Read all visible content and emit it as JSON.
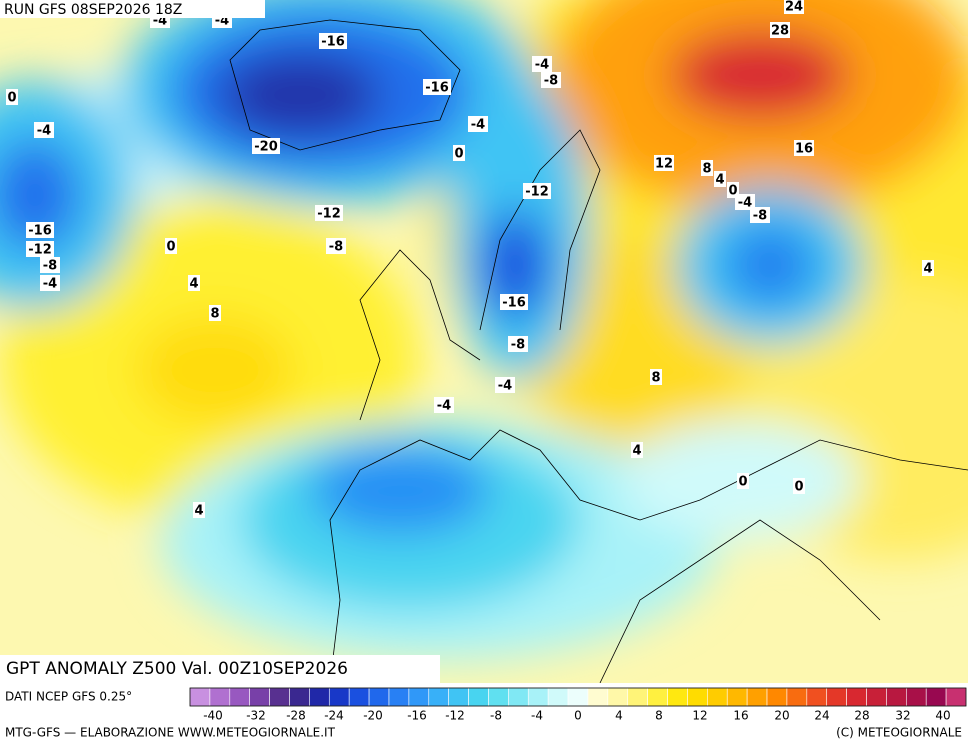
{
  "header": {
    "run": "RUN GFS 08SEP2026 18Z"
  },
  "map": {
    "contour_labels": [
      -4,
      -4,
      -16,
      -16,
      -20,
      -4,
      0,
      -12,
      -8,
      0,
      -4,
      -16,
      -12,
      -8,
      -4,
      0,
      4,
      8,
      4,
      24,
      28,
      -4,
      -8,
      12,
      8,
      4,
      0,
      -4,
      -8,
      16,
      -12,
      -16,
      -8,
      -4,
      -4,
      8,
      4,
      0,
      0,
      4
    ]
  },
  "caption": {
    "title": "GPT ANOMALY Z500 Val. 00Z10SEP2026"
  },
  "colorbar": {
    "source": "DATI NCEP GFS 0.25°",
    "colors": [
      "#c890e0",
      "#b070d0",
      "#9858c0",
      "#7840a8",
      "#583090",
      "#3a2890",
      "#2028a8",
      "#1838c8",
      "#1a50e0",
      "#2068ec",
      "#2880f4",
      "#3098f8",
      "#38b0f8",
      "#40c4f4",
      "#48d4f0",
      "#60e0f0",
      "#80e8f4",
      "#a8f2f8",
      "#d0fafa",
      "#ecfefc",
      "#fffcd0",
      "#fff8a8",
      "#fff478",
      "#fff040",
      "#ffe810",
      "#ffdc00",
      "#ffcc00",
      "#ffb800",
      "#ffa000",
      "#ff8800",
      "#f86c10",
      "#f05020",
      "#e43828",
      "#d82830",
      "#c82038",
      "#b81840",
      "#a81048",
      "#980850",
      "#c83070"
    ],
    "ticks": [
      -40,
      -32,
      -28,
      -24,
      -20,
      -16,
      -12,
      -8,
      -4,
      0,
      4,
      8,
      12,
      16,
      20,
      24,
      28,
      32,
      40
    ]
  },
  "footer": {
    "credit": "MTG-GFS — ELABORAZIONE WWW.METEOGIORNALE.IT",
    "copyright": "(C) METEOGIORNALE"
  }
}
